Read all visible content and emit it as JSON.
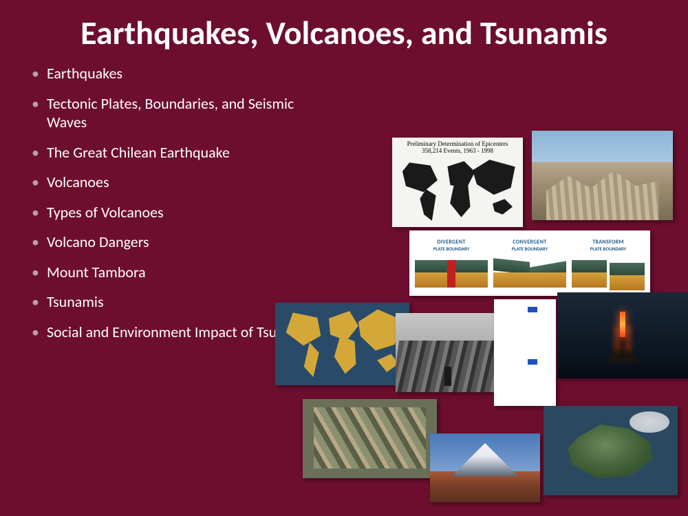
{
  "slide": {
    "background_color": "#6d0e2f",
    "title": "Earthquakes, Volcanoes, and Tsunamis",
    "title_fontsize": 48,
    "title_color": "#ffffff",
    "bullet_fontsize": 22,
    "bullet_color": "#ffffff",
    "bullet_marker_color": "#b8a0a8",
    "bullets": [
      "Earthquakes",
      "Tectonic Plates, Boundaries, and Seismic Waves",
      "The Great Chilean Earthquake",
      "Volcanoes",
      "Types of Volcanoes",
      "Volcano Dangers",
      "Mount Tambora",
      "Tsunamis",
      "Social and Environment Impact of Tsunamis"
    ]
  },
  "thumbnails": {
    "epicenters": {
      "caption_line1": "Preliminary Determination of Epicenters",
      "caption_line2": "358,214 Events, 1963 - 1998",
      "bg": "#f4f4f0",
      "land_color": "#1a1a1a"
    },
    "rubble": {
      "description": "collapsed-building-earthquake-damage"
    },
    "boundaries": {
      "bg": "#ffffff",
      "label_color": "#1f5a8a",
      "crust_color": "#3a5a48",
      "mantle_color": "#c88a2a",
      "arrow_color": "#c02020",
      "items": [
        {
          "top": "DIVERGENT",
          "sub": "PLATE BOUNDARY"
        },
        {
          "top": "CONVERGENT",
          "sub": "PLATE BOUNDARY"
        },
        {
          "top": "TRANSFORM",
          "sub": "PLATE BOUNDARY"
        }
      ]
    },
    "platesmap": {
      "ocean_color": "#2a4a6a",
      "land_color": "#d4a838",
      "line_color": "#7a4a8a"
    },
    "oldquake": {
      "description": "historic-chilean-earthquake-bw-photo"
    },
    "voltype": {
      "bg": "#ffffff",
      "cone_color": "#7a6a50",
      "upper_sub": "#f2d060",
      "lower_sub": "#e85020",
      "arrow_color": "#2050c0"
    },
    "erupt": {
      "description": "volcano-erupting-at-night-lava"
    },
    "aerial": {
      "description": "aerial-tsunami-port-damage"
    },
    "fuji": {
      "description": "snow-capped-volcano-mt-fuji"
    },
    "satellite": {
      "description": "satellite-volcanic-island"
    }
  }
}
